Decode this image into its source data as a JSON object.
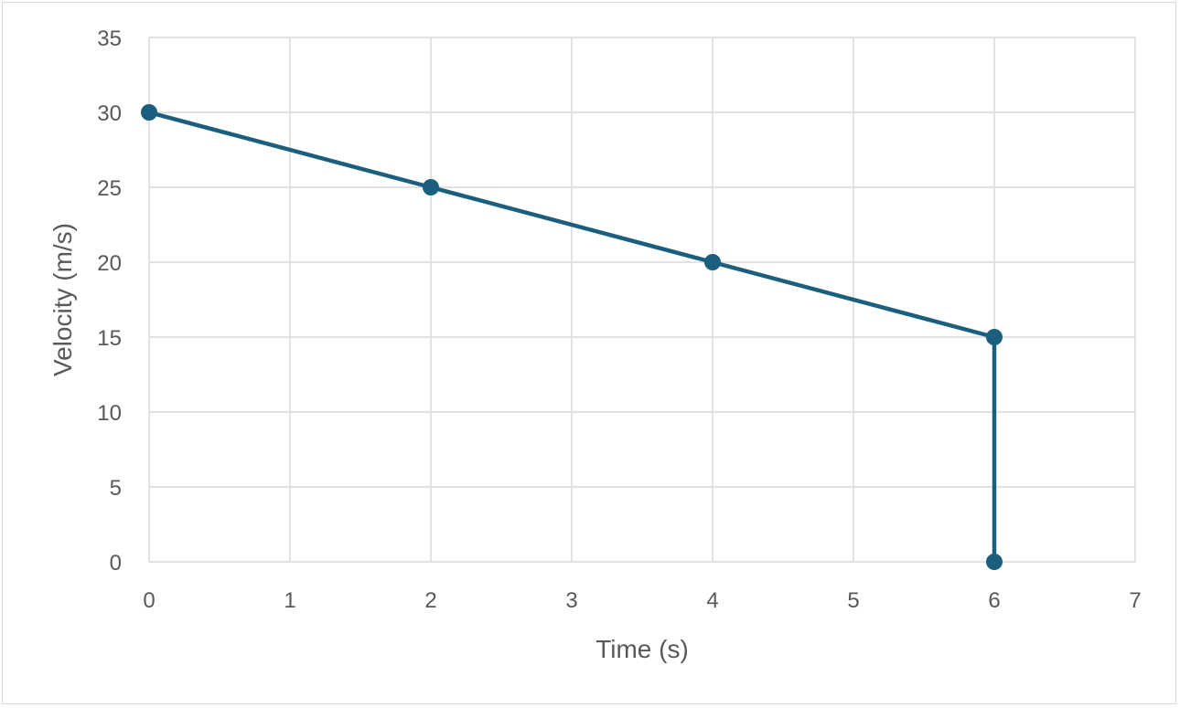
{
  "chart_data": {
    "type": "scatter",
    "title": "",
    "xlabel": "Time (s)",
    "ylabel": "Velocity (m/s)",
    "xlim": [
      0,
      7
    ],
    "ylim": [
      0,
      35
    ],
    "x_ticks": [
      0,
      1,
      2,
      3,
      4,
      5,
      6,
      7
    ],
    "y_ticks": [
      0,
      5,
      10,
      15,
      20,
      25,
      30,
      35
    ],
    "grid": true,
    "legend": "none",
    "series": [
      {
        "x": [
          0,
          2,
          4,
          6,
          6
        ],
        "y": [
          30,
          25,
          20,
          15,
          0
        ],
        "mode": "lines+markers",
        "color": "#1b5e7e"
      }
    ]
  },
  "colors": {
    "series": "#1b5e7e",
    "grid": "#d9d9d9",
    "text": "#595959",
    "border": "#d9d9d9"
  }
}
